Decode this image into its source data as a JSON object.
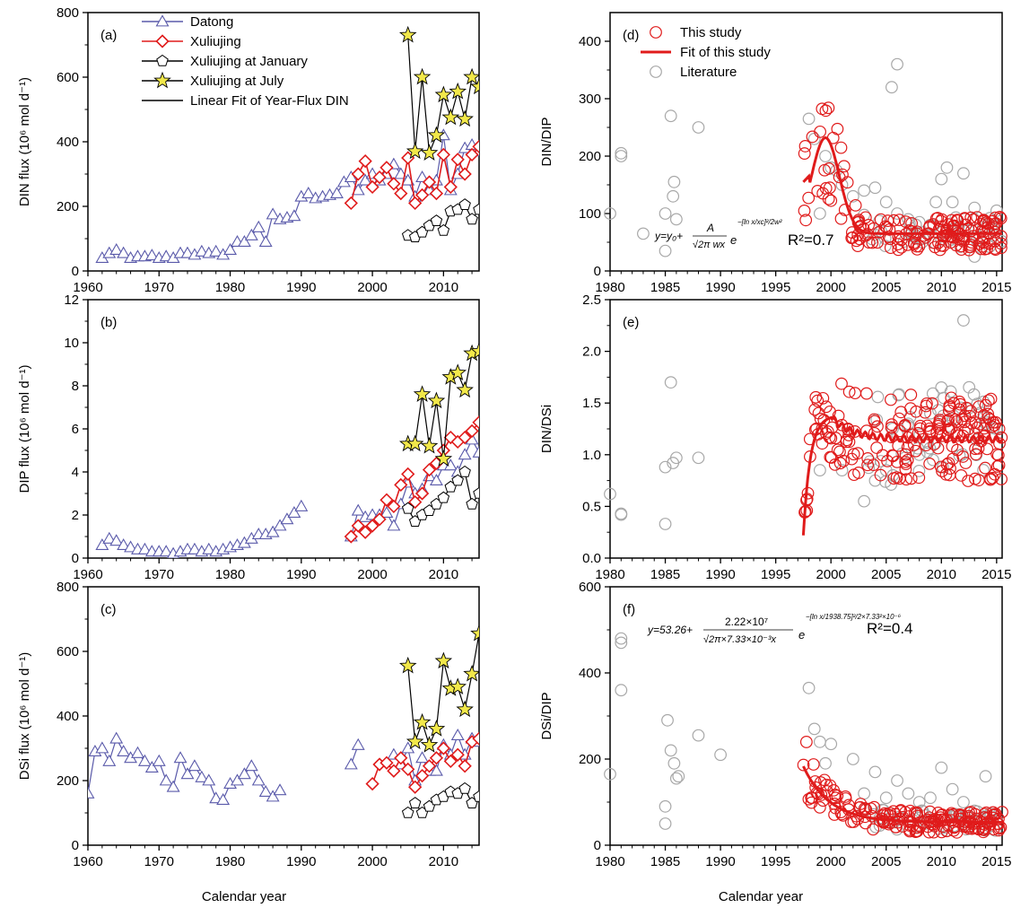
{
  "figure": {
    "xlabel_left": "Calendar year",
    "xlabel_right": "Calendar year"
  },
  "colors": {
    "datong": "#5a5aaa",
    "xuliujing": "#e01b1b",
    "january": "#000000",
    "july_fill": "#f2e84a",
    "literature": "#a8a8a8",
    "fit": "#e01b1b"
  },
  "chart_data": [
    {
      "panel": "a",
      "label": "(a)",
      "type": "line",
      "ylabel": "DIN flux (10⁶ mol d⁻¹)",
      "xlim": [
        1960,
        2015
      ],
      "ylim": [
        0,
        800
      ],
      "xticks": [
        "1960",
        "1970",
        "1980",
        "1990",
        "2000",
        "2010"
      ],
      "yticks": [
        "0",
        "200",
        "400",
        "600",
        "800"
      ],
      "legend": [
        {
          "label": "Datong",
          "series": "datong"
        },
        {
          "label": "Xuliujing",
          "series": "xuliujing"
        },
        {
          "label": "Xuliujing at January",
          "series": "january"
        },
        {
          "label": "Xuliujing at July",
          "series": "july"
        },
        {
          "label": "Linear Fit of Year-Flux DIN",
          "series": "fit"
        }
      ],
      "series": [
        {
          "name": "Datong",
          "key": "datong",
          "marker": "triangle",
          "x": [
            1962,
            1963,
            1964,
            1965,
            1966,
            1967,
            1968,
            1969,
            1970,
            1971,
            1972,
            1973,
            1974,
            1975,
            1976,
            1977,
            1978,
            1979,
            1980,
            1981,
            1982,
            1983,
            1984,
            1985,
            1986,
            1987,
            1988,
            1989,
            1990,
            1991,
            1992,
            1993,
            1994,
            1995,
            1996,
            1997,
            1998,
            1999,
            2000,
            2001,
            2002,
            2003,
            2004,
            2005,
            2006,
            2007,
            2008,
            2009,
            2010,
            2011,
            2012,
            2013,
            2014,
            2015
          ],
          "y": [
            40,
            55,
            65,
            55,
            40,
            45,
            45,
            48,
            40,
            45,
            40,
            55,
            55,
            50,
            60,
            55,
            60,
            50,
            65,
            90,
            90,
            110,
            135,
            90,
            175,
            160,
            165,
            170,
            230,
            240,
            225,
            230,
            235,
            240,
            275,
            290,
            250,
            280,
            300,
            280,
            300,
            330,
            300,
            280,
            230,
            290,
            250,
            280,
            420,
            250,
            300,
            380,
            390,
            370
          ]
        },
        {
          "name": "Xuliujing",
          "key": "xuliujing",
          "marker": "diamond",
          "x": [
            1997,
            1998,
            1999,
            2000,
            2001,
            2002,
            2003,
            2004,
            2005,
            2006,
            2007,
            2008,
            2009,
            2010,
            2011,
            2012,
            2013,
            2014,
            2015
          ],
          "y": [
            210,
            300,
            340,
            260,
            290,
            320,
            270,
            240,
            350,
            210,
            235,
            275,
            240,
            360,
            260,
            345,
            300,
            360,
            385
          ]
        },
        {
          "name": "Xuliujing at January",
          "key": "january",
          "marker": "pentagon",
          "x": [
            2005,
            2006,
            2007,
            2008,
            2009,
            2010,
            2011,
            2012,
            2013,
            2014,
            2015
          ],
          "y": [
            110,
            105,
            120,
            140,
            155,
            125,
            185,
            190,
            205,
            160,
            190
          ]
        },
        {
          "name": "Xuliujing at July",
          "key": "july",
          "marker": "star",
          "x": [
            2005,
            2006,
            2007,
            2008,
            2009,
            2010,
            2011,
            2012,
            2013,
            2014,
            2015
          ],
          "y": [
            730,
            370,
            600,
            365,
            420,
            545,
            475,
            555,
            470,
            600,
            570
          ]
        }
      ]
    },
    {
      "panel": "b",
      "label": "(b)",
      "type": "line",
      "ylabel": "DIP flux (10⁶ mol d⁻¹)",
      "xlim": [
        1960,
        2015
      ],
      "ylim": [
        0,
        12
      ],
      "xticks": [
        "1960",
        "1970",
        "1980",
        "1990",
        "2000",
        "2010"
      ],
      "yticks": [
        "0",
        "2",
        "4",
        "6",
        "8",
        "10",
        "12"
      ],
      "series": [
        {
          "name": "Datong",
          "key": "datong",
          "marker": "triangle",
          "x": [
            1962,
            1963,
            1964,
            1965,
            1966,
            1967,
            1968,
            1969,
            1970,
            1971,
            1972,
            1973,
            1974,
            1975,
            1976,
            1977,
            1978,
            1979,
            1980,
            1981,
            1982,
            1983,
            1984,
            1985,
            1986,
            1987,
            1988,
            1989,
            1990,
            1997,
            1998,
            1999,
            2000,
            2001,
            2002,
            2003,
            2004,
            2005,
            2006,
            2007,
            2008,
            2009,
            2010,
            2011,
            2012,
            2013,
            2014,
            2015
          ],
          "y": [
            0.6,
            0.9,
            0.8,
            0.6,
            0.5,
            0.4,
            0.4,
            0.3,
            0.3,
            0.3,
            0.2,
            0.3,
            0.4,
            0.4,
            0.3,
            0.4,
            0.3,
            0.4,
            0.5,
            0.6,
            0.7,
            0.9,
            1.1,
            1.1,
            1.2,
            1.5,
            1.8,
            2.1,
            2.4,
            1.0,
            2.2,
            1.9,
            2.0,
            2.0,
            2.1,
            1.5,
            2.5,
            3.5,
            3.0,
            3.2,
            3.8,
            3.6,
            4.3,
            4.3,
            4.0,
            4.8,
            5.5,
            4.9
          ]
        },
        {
          "name": "Xuliujing",
          "key": "xuliujing",
          "marker": "diamond",
          "x": [
            1997,
            1998,
            1999,
            2000,
            2001,
            2002,
            2003,
            2004,
            2005,
            2006,
            2007,
            2008,
            2009,
            2010,
            2011,
            2012,
            2013,
            2014,
            2015
          ],
          "y": [
            1.0,
            1.5,
            1.2,
            1.5,
            1.8,
            2.7,
            2.4,
            3.4,
            3.9,
            2.6,
            3.0,
            4.1,
            4.4,
            5.0,
            5.6,
            5.4,
            5.6,
            5.9,
            6.3
          ]
        },
        {
          "name": "Xuliujing at January",
          "key": "january",
          "marker": "pentagon",
          "x": [
            2005,
            2006,
            2007,
            2008,
            2009,
            2010,
            2011,
            2012,
            2013,
            2014,
            2015
          ],
          "y": [
            2.3,
            1.7,
            2.0,
            2.2,
            2.5,
            2.8,
            3.3,
            3.6,
            4.0,
            2.5,
            3.0
          ]
        },
        {
          "name": "Xuliujing at July",
          "key": "july",
          "marker": "star",
          "x": [
            2005,
            2006,
            2007,
            2008,
            2009,
            2010,
            2011,
            2012,
            2013,
            2014,
            2015
          ],
          "y": [
            5.3,
            5.3,
            7.6,
            5.2,
            7.3,
            4.6,
            8.4,
            8.6,
            7.8,
            9.5,
            9.6
          ]
        }
      ]
    },
    {
      "panel": "c",
      "label": "(c)",
      "type": "line",
      "ylabel": "DSi flux (10⁶ mol d⁻¹)",
      "xlim": [
        1960,
        2015
      ],
      "ylim": [
        0,
        800
      ],
      "xticks": [
        "1960",
        "1970",
        "1980",
        "1990",
        "2000",
        "2010"
      ],
      "yticks": [
        "0",
        "200",
        "400",
        "600",
        "800"
      ],
      "series": [
        {
          "name": "Datong",
          "key": "datong",
          "marker": "triangle",
          "x": [
            1960,
            1961,
            1962,
            1963,
            1964,
            1965,
            1966,
            1967,
            1968,
            1969,
            1970,
            1971,
            1972,
            1973,
            1974,
            1975,
            1976,
            1977,
            1978,
            1979,
            1980,
            1981,
            1982,
            1983,
            1984,
            1985,
            1986,
            1987,
            1997,
            1998,
            2003,
            2004,
            2005,
            2006,
            2007,
            2008,
            2009,
            2010,
            2011,
            2012,
            2013,
            2014,
            2015
          ],
          "y": [
            160,
            290,
            300,
            260,
            330,
            290,
            270,
            285,
            260,
            240,
            260,
            200,
            180,
            270,
            220,
            245,
            210,
            200,
            145,
            140,
            190,
            200,
            220,
            245,
            200,
            165,
            150,
            170,
            250,
            310,
            280,
            250,
            300,
            200,
            270,
            230,
            230,
            310,
            280,
            340,
            280,
            330,
            320
          ]
        },
        {
          "name": "Xuliujing",
          "key": "xuliujing",
          "marker": "diamond",
          "x": [
            2000,
            2001,
            2002,
            2003,
            2004,
            2005,
            2006,
            2007,
            2008,
            2009,
            2010,
            2011,
            2012,
            2013,
            2014,
            2015
          ],
          "y": [
            190,
            250,
            255,
            230,
            270,
            235,
            180,
            215,
            245,
            270,
            300,
            260,
            280,
            245,
            320,
            330
          ]
        },
        {
          "name": "Xuliujing at January",
          "key": "january",
          "marker": "pentagon",
          "x": [
            2005,
            2006,
            2007,
            2008,
            2009,
            2010,
            2011,
            2012,
            2013,
            2014,
            2015
          ],
          "y": [
            100,
            130,
            100,
            120,
            140,
            150,
            165,
            160,
            175,
            130,
            150
          ]
        },
        {
          "name": "Xuliujing at July",
          "key": "july",
          "marker": "star",
          "x": [
            2005,
            2006,
            2007,
            2008,
            2009,
            2010,
            2011,
            2012,
            2013,
            2014,
            2015
          ],
          "y": [
            555,
            320,
            380,
            310,
            360,
            570,
            485,
            490,
            420,
            530,
            655
          ]
        }
      ]
    },
    {
      "panel": "d",
      "label": "(d)",
      "type": "scatter",
      "ylabel": "DIN/DIP",
      "xlim": [
        1980,
        2015.5
      ],
      "ylim": [
        0,
        450
      ],
      "xticks": [
        "1980",
        "1985",
        "1990",
        "1995",
        "2000",
        "2005",
        "2010",
        "2015"
      ],
      "yticks": [
        "0",
        "100",
        "200",
        "300",
        "400"
      ],
      "legend": [
        {
          "label": "This study",
          "series": "this_study"
        },
        {
          "label": "Fit of this study",
          "series": "fit"
        },
        {
          "label": "Literature",
          "series": "literature"
        }
      ],
      "annotation_text": "R²=0.7",
      "fit": {
        "name": "Fit of this study",
        "y0": 65,
        "A": 167,
        "xc": 1999.5,
        "w": 0.0012,
        "x_start": 1997.5,
        "x_end": 2015.5
      },
      "literature": {
        "x": [
          1980,
          1981,
          1981,
          1983,
          1985,
          1985,
          1985.5,
          1985.7,
          1985.8,
          1986,
          1988,
          1998,
          1998.5,
          1999,
          1999.5,
          2000,
          2000.5,
          2001,
          2002,
          2003,
          2004,
          2005,
          2005.5,
          2006,
          2006,
          2007,
          2008,
          2009,
          2009.5,
          2010,
          2010.5,
          2011,
          2012,
          2013,
          2014,
          2015,
          2010,
          2011,
          2013
        ],
        "y": [
          100,
          205,
          200,
          65,
          100,
          35,
          270,
          130,
          155,
          90,
          250,
          265,
          230,
          100,
          200,
          180,
          175,
          150,
          130,
          140,
          145,
          120,
          320,
          360,
          100,
          90,
          85,
          80,
          120,
          160,
          180,
          120,
          170,
          110,
          75,
          105,
          55,
          55,
          25
        ]
      },
      "this_study_count": 175
    },
    {
      "panel": "e",
      "label": "(e)",
      "type": "scatter",
      "ylabel": "DIN/DSi",
      "xlim": [
        1980,
        2015.5
      ],
      "ylim": [
        0,
        2.5
      ],
      "xticks": [
        "1980",
        "1985",
        "1990",
        "1995",
        "2000",
        "2005",
        "2010",
        "2015"
      ],
      "yticks": [
        "0.0",
        "0.5",
        "1.0",
        "1.5",
        "2.0",
        "2.5"
      ],
      "literature": {
        "x": [
          1980,
          1981,
          1981,
          1985,
          1985,
          1985.5,
          1985.7,
          1986,
          1988,
          1999,
          2001,
          2003,
          2004,
          2005,
          2006,
          2007,
          2008,
          2009,
          2010,
          2011,
          2012,
          2013,
          2014,
          2015
        ],
        "y": [
          0.62,
          0.42,
          0.43,
          0.88,
          0.33,
          1.7,
          0.92,
          0.97,
          0.97,
          0.85,
          0.85,
          0.55,
          0.75,
          0.85,
          1.2,
          1.3,
          1.0,
          1.4,
          1.65,
          1.35,
          2.3,
          1.2,
          1.3,
          1.25
        ]
      },
      "this_study_count": 200
    },
    {
      "panel": "f",
      "label": "(f)",
      "type": "scatter",
      "ylabel": "DSi/DIP",
      "xlim": [
        1980,
        2015.5
      ],
      "ylim": [
        0,
        600
      ],
      "xticks": [
        "1980",
        "1985",
        "1990",
        "1995",
        "2000",
        "2005",
        "2010",
        "2015"
      ],
      "yticks": [
        "0",
        "200",
        "400",
        "600"
      ],
      "annotation_text": "R²=0.4",
      "fit": {
        "name": "Fit of this study",
        "y0": 53.26,
        "A": 22200000,
        "xc": 1938.75,
        "w": 0.00733,
        "x_start": 1997.5,
        "x_end": 2015.5
      },
      "literature": {
        "x": [
          1980,
          1981,
          1981,
          1981,
          1985,
          1985,
          1985.2,
          1985.5,
          1985.8,
          1986,
          1986.2,
          1988,
          1990,
          1998,
          1998.5,
          1999,
          1999.5,
          2000,
          2002,
          2003,
          2004,
          2005,
          2006,
          2007,
          2008,
          2009,
          2010,
          2011,
          2012,
          2013,
          2014,
          2015
        ],
        "y": [
          165,
          480,
          470,
          360,
          90,
          50,
          290,
          220,
          190,
          155,
          160,
          255,
          210,
          365,
          270,
          240,
          190,
          235,
          200,
          120,
          170,
          110,
          150,
          120,
          100,
          110,
          180,
          130,
          100,
          80,
          160,
          60
        ]
      },
      "this_study_count": 180
    }
  ]
}
